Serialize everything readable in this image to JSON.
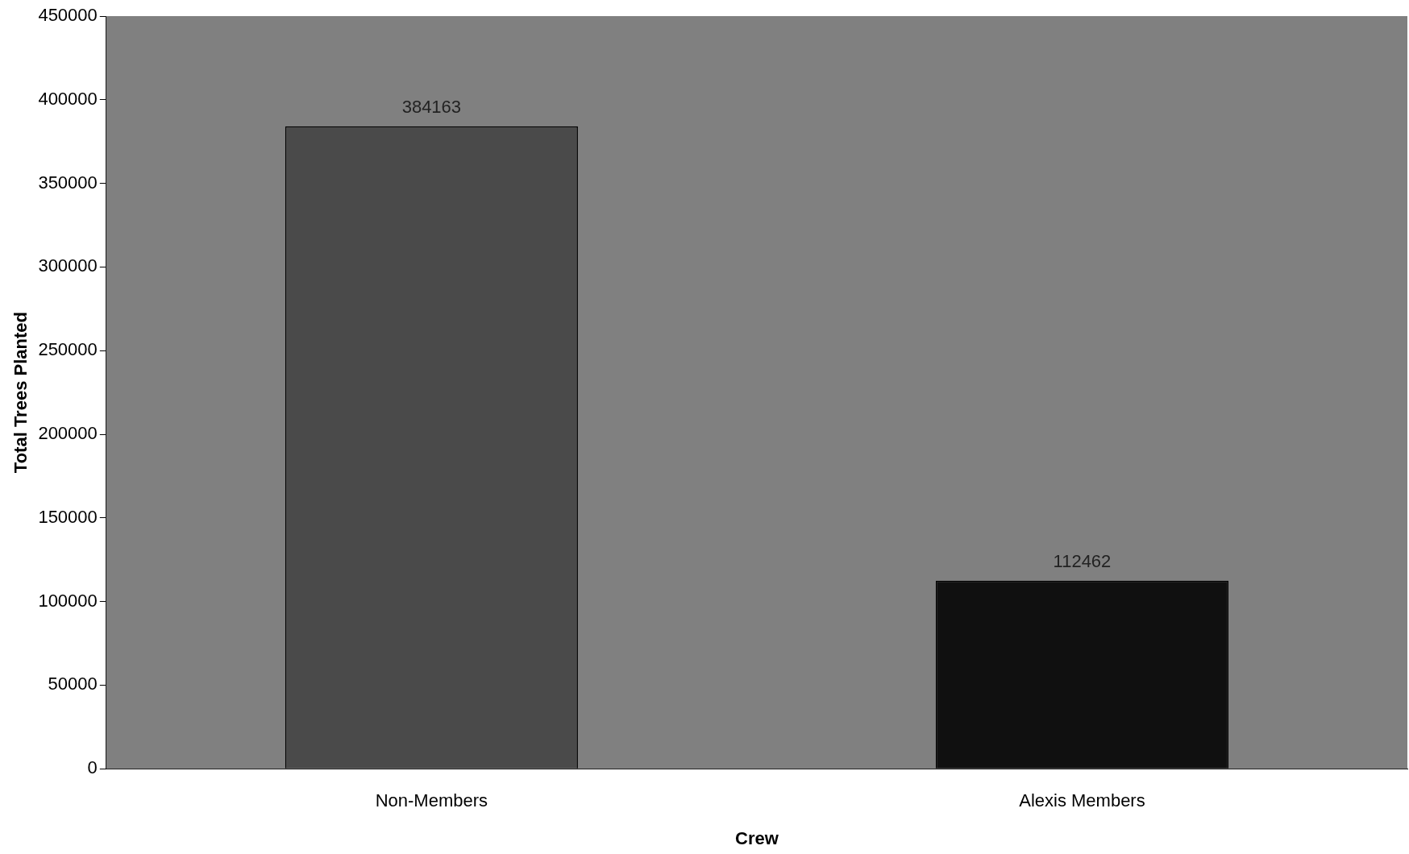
{
  "chart_data": {
    "type": "bar",
    "xlabel": "Crew",
    "ylabel": "Total Trees Planted",
    "categories": [
      "Non-Members",
      "Alexis Members"
    ],
    "values": [
      384163,
      112462
    ],
    "colors": [
      "#4a4a4a",
      "#101010"
    ],
    "ylim": [
      0,
      450000
    ],
    "yticks": [
      0,
      50000,
      100000,
      150000,
      200000,
      250000,
      300000,
      350000,
      400000,
      450000
    ],
    "data_labels": true,
    "grid": false,
    "legend": false
  }
}
